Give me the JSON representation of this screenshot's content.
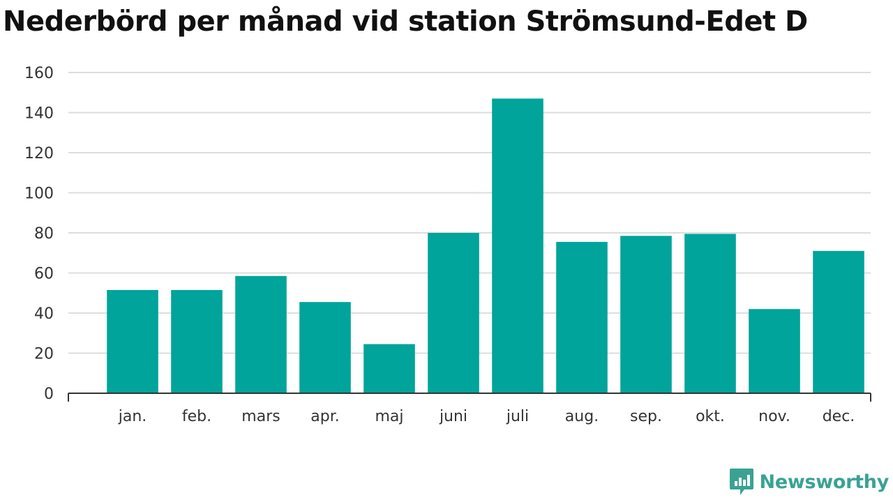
{
  "title": "Nederbörd per månad vid station Strömsund-Edet D",
  "brand": {
    "name": "Newsworthy",
    "icon": "newsworthy-logo-icon",
    "color": "#3aa293"
  },
  "colors": {
    "bar": "#00a49a",
    "grid": "#dddddd",
    "axis": "#333333"
  },
  "chart_data": {
    "type": "bar",
    "title": "Nederbörd per månad vid station Strömsund-Edet D",
    "categories": [
      "jan.",
      "feb.",
      "mars",
      "apr.",
      "maj",
      "juni",
      "juli",
      "aug.",
      "sep.",
      "okt.",
      "nov.",
      "dec."
    ],
    "values": [
      51.5,
      51.5,
      58.5,
      45.5,
      24.5,
      80,
      147,
      75.5,
      78.5,
      79.5,
      42,
      71
    ],
    "xlabel": "",
    "ylabel": "",
    "ylim": [
      0,
      160
    ],
    "yticks": [
      0,
      20,
      40,
      60,
      80,
      100,
      120,
      140,
      160
    ],
    "grid": true,
    "legend": "none"
  }
}
